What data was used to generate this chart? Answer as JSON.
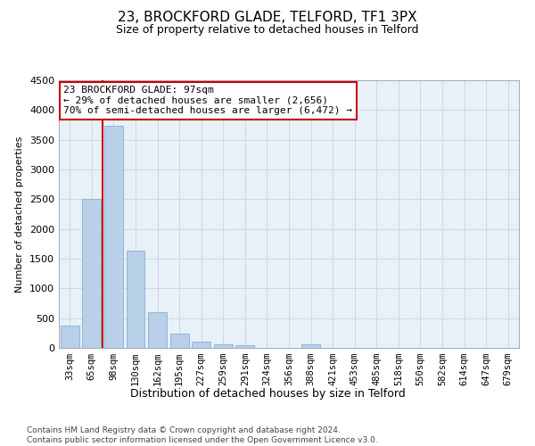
{
  "title": "23, BROCKFORD GLADE, TELFORD, TF1 3PX",
  "subtitle": "Size of property relative to detached houses in Telford",
  "xlabel": "Distribution of detached houses by size in Telford",
  "ylabel": "Number of detached properties",
  "footer_line1": "Contains HM Land Registry data © Crown copyright and database right 2024.",
  "footer_line2": "Contains public sector information licensed under the Open Government Licence v3.0.",
  "bar_labels": [
    "33sqm",
    "65sqm",
    "98sqm",
    "130sqm",
    "162sqm",
    "195sqm",
    "227sqm",
    "259sqm",
    "291sqm",
    "324sqm",
    "356sqm",
    "388sqm",
    "421sqm",
    "453sqm",
    "485sqm",
    "518sqm",
    "550sqm",
    "582sqm",
    "614sqm",
    "647sqm",
    "679sqm"
  ],
  "bar_values": [
    380,
    2500,
    3730,
    1640,
    600,
    245,
    100,
    60,
    40,
    0,
    0,
    60,
    0,
    0,
    0,
    0,
    0,
    0,
    0,
    0,
    0
  ],
  "bar_color": "#b8d0e8",
  "bar_edge_color": "#88aed0",
  "ylim": [
    0,
    4500
  ],
  "yticks": [
    0,
    500,
    1000,
    1500,
    2000,
    2500,
    3000,
    3500,
    4000,
    4500
  ],
  "vline_index": 2,
  "vline_color": "#cc0000",
  "annotation_line1": "23 BROCKFORD GLADE: 97sqm",
  "annotation_line2": "← 29% of detached houses are smaller (2,656)",
  "annotation_line3": "70% of semi-detached houses are larger (6,472) →",
  "annotation_box_color": "#cc0000",
  "grid_color": "#ccd8e8",
  "background_color": "#e8f0f8",
  "title_fontsize": 11,
  "subtitle_fontsize": 9,
  "ylabel_fontsize": 8,
  "xlabel_fontsize": 9,
  "tick_fontsize": 7.5,
  "footer_fontsize": 6.5,
  "annotation_fontsize": 8
}
